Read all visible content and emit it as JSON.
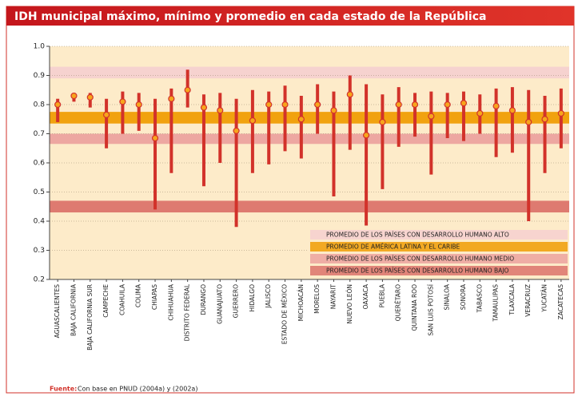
{
  "chart_data": {
    "type": "range",
    "title": "IDH municipal máximo, mínimo y promedio en cada estado de la República",
    "categories": [
      "AGUASCALIENTES",
      "BAJA CALIFORNIA",
      "BAJA CALIFORNIA SUR",
      "CAMPECHE",
      "COAHUILA",
      "COLIMA",
      "CHIAPAS",
      "CHIHUAHUA",
      "DISTRITO FEDERAL",
      "DURANGO",
      "GUANAJUATO",
      "GUERRERO",
      "HIDALGO",
      "JALISCO",
      "ESTADO DE MÉXICO",
      "MICHOACÁN",
      "MORELOS",
      "NAYARIT",
      "NUEVO LEÓN",
      "OAXACA",
      "PUEBLA",
      "QUERÉTARO",
      "QUINTANA ROO",
      "SAN LUIS POTOSÍ",
      "SINALOA",
      "SONORA",
      "TABASCO",
      "TAMAULIPAS",
      "TLAXCALA",
      "VERACRUZ",
      "YUCATÁN",
      "ZACATECAS"
    ],
    "high": [
      0.82,
      0.84,
      0.84,
      0.82,
      0.845,
      0.84,
      0.82,
      0.855,
      0.92,
      0.835,
      0.84,
      0.82,
      0.85,
      0.845,
      0.865,
      0.83,
      0.87,
      0.845,
      0.9,
      0.87,
      0.835,
      0.86,
      0.84,
      0.845,
      0.84,
      0.845,
      0.835,
      0.855,
      0.86,
      0.85,
      0.83,
      0.855
    ],
    "low": [
      0.74,
      0.81,
      0.79,
      0.65,
      0.7,
      0.71,
      0.44,
      0.565,
      0.79,
      0.52,
      0.6,
      0.38,
      0.565,
      0.595,
      0.64,
      0.615,
      0.7,
      0.485,
      0.645,
      0.385,
      0.51,
      0.655,
      0.69,
      0.56,
      0.685,
      0.675,
      0.7,
      0.62,
      0.635,
      0.4,
      0.565,
      0.65
    ],
    "values": [
      0.8,
      0.83,
      0.825,
      0.765,
      0.81,
      0.8,
      0.685,
      0.82,
      0.85,
      0.79,
      0.78,
      0.71,
      0.745,
      0.8,
      0.8,
      0.75,
      0.8,
      0.78,
      0.835,
      0.695,
      0.74,
      0.8,
      0.8,
      0.76,
      0.8,
      0.805,
      0.77,
      0.795,
      0.78,
      0.74,
      0.75,
      0.77
    ],
    "bar_color": "#d2322a",
    "marker_color": "#f7a51c",
    "ylim": [
      0.2,
      1.0
    ],
    "yticks": [
      {
        "value": 1.0,
        "label": "1.0"
      },
      0.9,
      0.8,
      0.7,
      0.6,
      0.5,
      0.4,
      0.3,
      0.2
    ],
    "grid": true,
    "bands": [
      {
        "name": "PROMEDIO DE LOS PAÍSES CON DESARROLLO HUMANO ALTO",
        "range": [
          0.89,
          0.93
        ],
        "color": "#f6d2cf"
      },
      {
        "name": "PROMEDIO DE AMÉRICA LATINA Y EL CARIBE",
        "range": [
          0.735,
          0.775
        ],
        "color": "#f1a20f"
      },
      {
        "name": "PROMEDIO DE LOS PAÍSES CON DESARROLLO HUMANO MEDIO",
        "range": [
          0.665,
          0.7
        ],
        "color": "#eda7a1"
      },
      {
        "name": "PROMEDIO DE LOS PAÍSES CON DESARROLLO HUMANO BAJO",
        "range": [
          0.43,
          0.47
        ],
        "color": "#de7a70"
      }
    ],
    "source_label": "Fuente:",
    "source": "Con base en PNUD (2004a) y (2002a)"
  }
}
